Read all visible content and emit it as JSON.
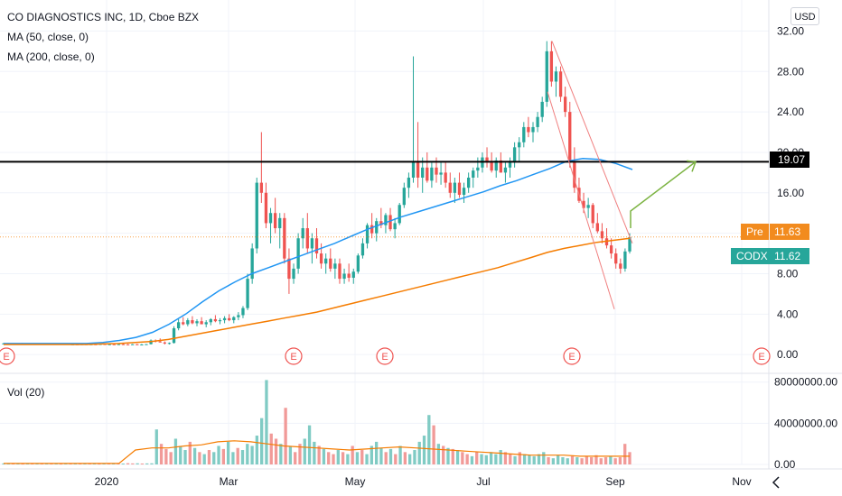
{
  "header": {
    "symbol_title": "CO DIAGNOSTICS INC, 1D, Cboe BZX",
    "ma50_label": "MA (50, close, 0)",
    "ma200_label": "MA (200, close, 0)",
    "currency": "USD",
    "volume_label": "Vol (20)"
  },
  "price_tags": {
    "level": "19.07",
    "pre_label": "Pre",
    "pre_value": "11.63",
    "ticker_label": "CODX",
    "ticker_value": "11.62"
  },
  "colors": {
    "up": "#26a69a",
    "down": "#ef5350",
    "ma50": "#2196f3",
    "ma200": "#f57c00",
    "arrow": "#7cb342",
    "channel": "#f08080",
    "level_line": "#000000"
  },
  "chart_data": [
    {
      "type": "candlestick",
      "title": "CO DIAGNOSTICS INC, 1D, Cboe BZX",
      "y_ticks": [
        0,
        4,
        8,
        12,
        16,
        20,
        24,
        28,
        32
      ],
      "y_tick_labels": [
        "0.00",
        "4.00",
        "8.00",
        "",
        "16.00",
        "20.00",
        "24.00",
        "28.00",
        "32.00"
      ],
      "ylim": [
        -1.5,
        34
      ],
      "x_tick_labels": [
        "2020",
        "Mar",
        "May",
        "Jul",
        "Sep",
        "Nov"
      ],
      "horizontal_level": 19.07,
      "candles": [
        [
          1.1,
          1.15,
          1.05,
          1.1
        ],
        [
          1.1,
          1.15,
          1.05,
          1.1
        ],
        [
          1.1,
          1.12,
          1.05,
          1.08
        ],
        [
          1.08,
          1.12,
          1.02,
          1.1
        ],
        [
          1.1,
          1.15,
          1.05,
          1.05
        ],
        [
          1.05,
          1.1,
          1.0,
          1.08
        ],
        [
          1.08,
          1.1,
          1.0,
          1.02
        ],
        [
          1.02,
          1.1,
          1.0,
          1.06
        ],
        [
          1.06,
          1.1,
          1.0,
          1.05
        ],
        [
          1.05,
          1.1,
          1.0,
          1.08
        ],
        [
          1.08,
          1.12,
          1.02,
          1.04
        ],
        [
          1.04,
          1.1,
          1.0,
          1.06
        ],
        [
          1.06,
          1.1,
          1.0,
          1.02
        ],
        [
          1.02,
          1.08,
          0.98,
          1.05
        ],
        [
          1.05,
          1.1,
          1.0,
          1.0
        ],
        [
          1.0,
          1.05,
          0.95,
          1.02
        ],
        [
          1.02,
          1.08,
          0.98,
          1.0
        ],
        [
          1.0,
          1.05,
          0.95,
          1.03
        ],
        [
          1.03,
          1.08,
          0.98,
          1.0
        ],
        [
          1.0,
          1.05,
          0.95,
          1.02
        ],
        [
          1.02,
          1.06,
          0.97,
          1.0
        ],
        [
          1.0,
          1.05,
          0.95,
          1.04
        ],
        [
          1.04,
          1.08,
          0.98,
          1.0
        ],
        [
          1.0,
          1.05,
          0.95,
          1.02
        ],
        [
          1.02,
          1.06,
          0.97,
          1.0
        ],
        [
          1.0,
          1.05,
          0.95,
          1.03
        ],
        [
          1.03,
          1.08,
          0.98,
          1.01
        ],
        [
          1.01,
          1.05,
          0.96,
          1.0
        ],
        [
          1.0,
          1.05,
          0.95,
          1.02
        ],
        [
          1.02,
          1.06,
          0.97,
          1.0
        ],
        [
          1.0,
          1.05,
          0.95,
          1.0
        ],
        [
          1.0,
          1.05,
          0.95,
          1.03
        ],
        [
          1.03,
          1.5,
          1.0,
          1.4
        ],
        [
          1.4,
          1.5,
          1.2,
          1.3
        ],
        [
          1.3,
          1.6,
          1.2,
          1.2
        ],
        [
          1.2,
          1.3,
          1.0,
          1.1
        ],
        [
          1.1,
          1.2,
          1.0,
          1.15
        ],
        [
          1.15,
          2.8,
          1.1,
          2.6
        ],
        [
          2.6,
          3.5,
          2.4,
          3.2
        ],
        [
          3.2,
          3.7,
          2.9,
          3.0
        ],
        [
          3.0,
          3.6,
          2.8,
          3.4
        ],
        [
          3.4,
          3.8,
          3.0,
          3.1
        ],
        [
          3.1,
          3.5,
          2.8,
          3.3
        ],
        [
          3.3,
          3.7,
          3.0,
          3.0
        ],
        [
          3.0,
          3.4,
          2.7,
          3.2
        ],
        [
          3.2,
          3.6,
          2.9,
          3.5
        ],
        [
          3.5,
          3.9,
          3.2,
          3.3
        ],
        [
          3.3,
          3.6,
          3.0,
          3.4
        ],
        [
          3.4,
          3.8,
          3.1,
          3.6
        ],
        [
          3.6,
          4.0,
          3.3,
          3.4
        ],
        [
          3.4,
          3.8,
          3.1,
          3.7
        ],
        [
          3.7,
          4.2,
          3.4,
          3.9
        ],
        [
          3.9,
          4.8,
          3.6,
          4.6
        ],
        [
          4.6,
          8.0,
          4.4,
          7.5
        ],
        [
          7.5,
          11.0,
          7.0,
          10.5
        ],
        [
          10.5,
          17.5,
          10.0,
          17.0
        ],
        [
          17.0,
          22.0,
          15.0,
          16.0
        ],
        [
          16.0,
          17.0,
          12.5,
          13.0
        ],
        [
          13.0,
          14.5,
          11.0,
          14.0
        ],
        [
          14.0,
          15.5,
          12.0,
          12.5
        ],
        [
          12.5,
          14.0,
          10.5,
          13.5
        ],
        [
          13.5,
          14.0,
          9.0,
          9.5
        ],
        [
          9.5,
          10.5,
          6.0,
          7.5
        ],
        [
          7.5,
          9.0,
          7.0,
          8.5
        ],
        [
          8.5,
          12.0,
          8.0,
          11.5
        ],
        [
          11.5,
          13.5,
          10.5,
          12.5
        ],
        [
          12.5,
          14.0,
          10.0,
          10.5
        ],
        [
          10.5,
          12.0,
          9.0,
          11.5
        ],
        [
          11.5,
          12.5,
          9.5,
          10.0
        ],
        [
          10.0,
          11.0,
          8.5,
          9.0
        ],
        [
          9.0,
          10.0,
          8.0,
          9.5
        ],
        [
          9.5,
          10.5,
          8.2,
          8.5
        ],
        [
          8.5,
          9.5,
          7.5,
          9.0
        ],
        [
          9.0,
          9.5,
          7.0,
          7.5
        ],
        [
          7.5,
          8.5,
          7.0,
          8.0
        ],
        [
          8.0,
          9.0,
          7.2,
          7.6
        ],
        [
          7.6,
          8.5,
          7.0,
          8.2
        ],
        [
          8.2,
          10.0,
          8.0,
          9.8
        ],
        [
          9.8,
          11.5,
          9.5,
          11.0
        ],
        [
          11.0,
          13.0,
          10.5,
          12.8
        ],
        [
          12.8,
          14.0,
          11.5,
          12.0
        ],
        [
          12.0,
          13.5,
          11.2,
          13.2
        ],
        [
          13.2,
          14.5,
          12.5,
          12.8
        ],
        [
          12.8,
          14.0,
          12.0,
          13.8
        ],
        [
          13.8,
          14.5,
          12.2,
          12.4
        ],
        [
          12.4,
          13.5,
          11.5,
          13.0
        ],
        [
          13.0,
          15.0,
          12.8,
          14.8
        ],
        [
          14.8,
          17.0,
          14.5,
          16.5
        ],
        [
          16.5,
          18.0,
          15.5,
          17.5
        ],
        [
          17.5,
          29.5,
          17.0,
          19.0
        ],
        [
          19.0,
          23.0,
          16.5,
          17.5
        ],
        [
          17.5,
          19.5,
          16.0,
          18.5
        ],
        [
          18.5,
          20.0,
          17.0,
          17.2
        ],
        [
          17.2,
          19.0,
          16.5,
          18.5
        ],
        [
          18.5,
          19.5,
          17.0,
          17.8
        ],
        [
          17.8,
          19.0,
          16.8,
          18.0
        ],
        [
          18.0,
          19.0,
          16.5,
          17.0
        ],
        [
          17.0,
          18.0,
          15.5,
          16.0
        ],
        [
          16.0,
          17.5,
          15.0,
          17.0
        ],
        [
          17.0,
          18.0,
          15.5,
          15.8
        ],
        [
          15.8,
          17.0,
          15.0,
          16.5
        ],
        [
          16.5,
          18.0,
          16.0,
          17.5
        ],
        [
          17.5,
          18.5,
          16.5,
          18.2
        ],
        [
          18.2,
          19.5,
          17.5,
          18.5
        ],
        [
          18.5,
          20.0,
          18.0,
          19.5
        ],
        [
          19.5,
          20.5,
          18.5,
          19.0
        ],
        [
          19.0,
          20.0,
          18.0,
          18.2
        ],
        [
          18.2,
          19.5,
          17.5,
          19.2
        ],
        [
          19.2,
          20.0,
          18.0,
          18.0
        ],
        [
          18.0,
          19.0,
          17.0,
          18.5
        ],
        [
          18.5,
          19.5,
          17.5,
          19.0
        ],
        [
          19.0,
          21.0,
          18.5,
          20.5
        ],
        [
          20.5,
          21.5,
          19.0,
          21.0
        ],
        [
          21.0,
          23.0,
          20.5,
          22.5
        ],
        [
          22.5,
          23.5,
          21.5,
          22.0
        ],
        [
          22.0,
          23.0,
          21.0,
          22.5
        ],
        [
          22.5,
          24.0,
          22.0,
          23.5
        ],
        [
          23.5,
          25.5,
          23.0,
          25.0
        ],
        [
          25.0,
          31.0,
          24.5,
          30.0
        ],
        [
          30.0,
          31.0,
          26.5,
          27.0
        ],
        [
          27.0,
          28.5,
          25.5,
          28.0
        ],
        [
          28.0,
          28.5,
          25.0,
          25.5
        ],
        [
          25.5,
          26.5,
          23.5,
          24.0
        ],
        [
          24.0,
          25.0,
          18.5,
          19.0
        ],
        [
          19.0,
          20.5,
          16.0,
          16.5
        ],
        [
          16.5,
          17.5,
          15.0,
          15.2
        ],
        [
          15.2,
          16.0,
          14.0,
          14.5
        ],
        [
          14.5,
          15.5,
          13.5,
          14.8
        ],
        [
          14.8,
          15.0,
          12.5,
          13.0
        ],
        [
          13.0,
          14.0,
          12.0,
          12.2
        ],
        [
          12.2,
          13.0,
          11.0,
          11.5
        ],
        [
          11.5,
          12.5,
          10.5,
          10.8
        ],
        [
          10.8,
          11.5,
          9.5,
          10.0
        ],
        [
          10.0,
          10.5,
          8.5,
          9.0
        ],
        [
          9.0,
          9.5,
          8.0,
          8.5
        ],
        [
          8.5,
          10.5,
          8.2,
          10.2
        ],
        [
          10.2,
          12.0,
          10.0,
          11.62
        ]
      ],
      "ma50": [
        1.1,
        1.1,
        1.1,
        1.1,
        1.1,
        1.1,
        1.2,
        1.4,
        1.7,
        2.2,
        3.0,
        4.0,
        5.2,
        6.3,
        7.2,
        8.0,
        8.6,
        9.2,
        9.8,
        10.4,
        11.0,
        11.7,
        12.4,
        13.0,
        13.6,
        14.1,
        14.6,
        15.1,
        15.6,
        16.1,
        16.7,
        17.2,
        17.8,
        18.4,
        19.1,
        19.4,
        19.3,
        18.9,
        18.3
      ],
      "ma200": [
        1.0,
        1.0,
        1.0,
        1.0,
        1.0,
        1.0,
        1.05,
        1.1,
        1.2,
        1.3,
        1.5,
        1.8,
        2.1,
        2.4,
        2.7,
        3.0,
        3.3,
        3.6,
        3.9,
        4.2,
        4.6,
        5.0,
        5.4,
        5.8,
        6.2,
        6.6,
        7.0,
        7.4,
        7.8,
        8.2,
        8.6,
        9.1,
        9.6,
        10.1,
        10.5,
        10.8,
        11.1,
        11.3,
        11.5
      ],
      "earnings_markers": [
        "E",
        "E",
        "E",
        "E",
        "E"
      ]
    },
    {
      "type": "bar",
      "title": "Vol (20)",
      "y_ticks": [
        0,
        40000000,
        80000000
      ],
      "y_tick_labels": [
        "0.00",
        "40000000.00",
        "80000000.00"
      ],
      "ylim": [
        0,
        85000000
      ],
      "volumes": [
        1000000,
        1200000,
        900000,
        1100000,
        800000,
        1000000,
        900000,
        1200000,
        1000000,
        900000,
        1100000,
        1000000,
        800000,
        1200000,
        900000,
        1000000,
        1100000,
        900000,
        1000000,
        1200000,
        800000,
        1000000,
        900000,
        1100000,
        1000000,
        900000,
        1200000,
        1000000,
        1100000,
        900000,
        1000000,
        1100000,
        34000000,
        20000000,
        15000000,
        12000000,
        25000000,
        18000000,
        14000000,
        22000000,
        16000000,
        12000000,
        10000000,
        14000000,
        12000000,
        18000000,
        15000000,
        22000000,
        12000000,
        16000000,
        14000000,
        20000000,
        18000000,
        28000000,
        45000000,
        82000000,
        30000000,
        25000000,
        20000000,
        55000000,
        18000000,
        12000000,
        20000000,
        25000000,
        38000000,
        22000000,
        18000000,
        15000000,
        12000000,
        10000000,
        14000000,
        12000000,
        10000000,
        18000000,
        12000000,
        14000000,
        10000000,
        18000000,
        22000000,
        16000000,
        12000000,
        15000000,
        10000000,
        18000000,
        12000000,
        10000000,
        14000000,
        22000000,
        28000000,
        48000000,
        38000000,
        20000000,
        18000000,
        16000000,
        15000000,
        14000000,
        12000000,
        10000000,
        8000000,
        12000000,
        10000000,
        9000000,
        12000000,
        10000000,
        14000000,
        12000000,
        10000000,
        8000000,
        12000000,
        10000000,
        9000000,
        8000000,
        10000000,
        12000000,
        7000000,
        6000000,
        9000000,
        7000000,
        6000000,
        8000000,
        7000000,
        6000000,
        8000000,
        7000000,
        9000000,
        6000000,
        7000000,
        8000000,
        6000000,
        7000000,
        20000000,
        12000000
      ],
      "vol_ma": [
        1000000,
        1000000,
        1000000,
        1000000,
        1000000,
        1000000,
        1000000,
        1000000,
        14000000,
        16000000,
        16000000,
        18000000,
        19000000,
        22000000,
        23000000,
        22000000,
        20000000,
        18000000,
        17000000,
        16000000,
        15000000,
        14000000,
        15000000,
        16000000,
        17000000,
        16000000,
        15000000,
        14000000,
        13000000,
        12000000,
        11000000,
        10000000,
        9000000,
        9000000,
        9000000,
        8000000,
        8000000,
        8000000,
        8000000
      ]
    }
  ]
}
